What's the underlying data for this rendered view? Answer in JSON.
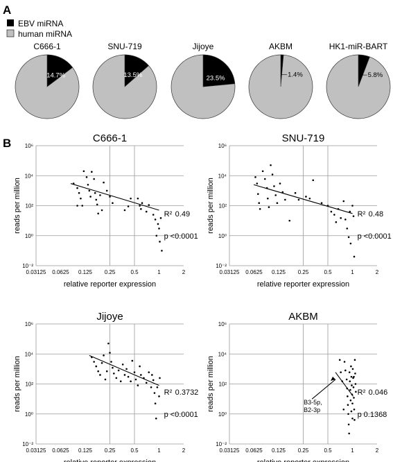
{
  "panel_a": {
    "label": "A",
    "legend": [
      {
        "name": "EBV miRNA",
        "color": "#000000"
      },
      {
        "name": "human miRNA",
        "color": "#c0c0c0"
      }
    ]
  },
  "panel_b": {
    "label": "B"
  },
  "colors": {
    "ebv": "#000000",
    "human": "#c0c0c0",
    "grid": "#999999",
    "points": "#000000"
  },
  "chart_data": [
    {
      "type": "pie",
      "title": "C666-1",
      "slices": [
        {
          "name": "EBV miRNA",
          "value": 14.7,
          "label": "14.7%"
        },
        {
          "name": "human miRNA",
          "value": 85.3
        }
      ]
    },
    {
      "type": "pie",
      "title": "SNU-719",
      "slices": [
        {
          "name": "EBV miRNA",
          "value": 13.5,
          "label": "13.5%"
        },
        {
          "name": "human miRNA",
          "value": 86.5
        }
      ]
    },
    {
      "type": "pie",
      "title": "Jijoye",
      "slices": [
        {
          "name": "EBV miRNA",
          "value": 23.5,
          "label": "23.5%"
        },
        {
          "name": "human miRNA",
          "value": 76.5
        }
      ]
    },
    {
      "type": "pie",
      "title": "AKBM",
      "slices": [
        {
          "name": "EBV miRNA",
          "value": 1.4,
          "label": "1.4%"
        },
        {
          "name": "human miRNA",
          "value": 98.6
        }
      ]
    },
    {
      "type": "pie",
      "title": "HK1-miR-BART",
      "slices": [
        {
          "name": "EBV miRNA",
          "value": 5.8,
          "label": "5.8%"
        },
        {
          "name": "human miRNA",
          "value": 94.2
        }
      ]
    },
    {
      "type": "scatter",
      "title": "C666-1",
      "xlabel": "relative reporter expression",
      "ylabel": "reads per million",
      "xscale": "log2",
      "yscale": "log10",
      "xlim": [
        0.03125,
        2
      ],
      "ylim": [
        0.01,
        1000000
      ],
      "xticks": [
        "0.03125",
        "0.0625",
        "0.125",
        "0.25",
        "0.5",
        "1",
        "2"
      ],
      "yticks": [
        "10-2",
        "100",
        "102",
        "104",
        "106"
      ],
      "r2_label": "R²",
      "r2_value": "0.49",
      "p_label": "p",
      "p_value": "<0.0001",
      "fit": [
        [
          0.083,
          3000
        ],
        [
          1.0,
          50
        ]
      ],
      "points": [
        [
          0.09,
          3000
        ],
        [
          0.1,
          1500
        ],
        [
          0.105,
          700
        ],
        [
          0.11,
          300
        ],
        [
          0.115,
          100
        ],
        [
          0.1,
          100
        ],
        [
          0.12,
          20000
        ],
        [
          0.13,
          8000
        ],
        [
          0.135,
          2500
        ],
        [
          0.14,
          1000
        ],
        [
          0.145,
          400
        ],
        [
          0.15,
          18000
        ],
        [
          0.16,
          6000
        ],
        [
          0.165,
          700
        ],
        [
          0.17,
          250
        ],
        [
          0.175,
          120
        ],
        [
          0.18,
          30
        ],
        [
          0.19,
          500
        ],
        [
          0.2,
          50
        ],
        [
          0.21,
          3500
        ],
        [
          0.23,
          1000
        ],
        [
          0.25,
          400
        ],
        [
          0.27,
          150
        ],
        [
          0.38,
          50
        ],
        [
          0.42,
          90
        ],
        [
          0.45,
          300
        ],
        [
          0.55,
          300
        ],
        [
          0.58,
          100
        ],
        [
          0.6,
          60
        ],
        [
          0.62,
          150
        ],
        [
          0.7,
          40
        ],
        [
          0.75,
          110
        ],
        [
          0.85,
          25
        ],
        [
          0.9,
          12
        ],
        [
          0.93,
          1
        ],
        [
          0.97,
          6
        ],
        [
          1.0,
          3
        ],
        [
          1.02,
          0.4
        ],
        [
          1.05,
          15
        ],
        [
          1.08,
          0.1
        ]
      ]
    },
    {
      "type": "scatter",
      "title": "SNU-719",
      "xlabel": "relative reporter expression",
      "ylabel": "reads per million",
      "xscale": "log2",
      "yscale": "log10",
      "xlim": [
        0.03125,
        2
      ],
      "ylim": [
        0.01,
        1000000
      ],
      "xticks": [
        "0.03125",
        "0.0625",
        "0.125",
        "0.25",
        "0.5",
        "1",
        "2"
      ],
      "yticks": [
        "10-2",
        "100",
        "102",
        "104",
        "106"
      ],
      "r2_label": "R²",
      "r2_value": "0.48",
      "p_label": "p",
      "p_value": "<0.0001",
      "fit": [
        [
          0.062,
          2500
        ],
        [
          1.0,
          30
        ]
      ],
      "points": [
        [
          0.065,
          8000
        ],
        [
          0.068,
          3000
        ],
        [
          0.07,
          600
        ],
        [
          0.072,
          150
        ],
        [
          0.074,
          60
        ],
        [
          0.08,
          20000
        ],
        [
          0.085,
          6000
        ],
        [
          0.09,
          1500
        ],
        [
          0.092,
          300
        ],
        [
          0.095,
          80
        ],
        [
          0.1,
          50000
        ],
        [
          0.105,
          12000
        ],
        [
          0.11,
          2000
        ],
        [
          0.115,
          500
        ],
        [
          0.12,
          150
        ],
        [
          0.13,
          3000
        ],
        [
          0.14,
          800
        ],
        [
          0.15,
          250
        ],
        [
          0.17,
          10
        ],
        [
          0.2,
          700
        ],
        [
          0.22,
          250
        ],
        [
          0.27,
          400
        ],
        [
          0.3,
          300
        ],
        [
          0.33,
          5000
        ],
        [
          0.42,
          150
        ],
        [
          0.5,
          100
        ],
        [
          0.55,
          40
        ],
        [
          0.6,
          25
        ],
        [
          0.63,
          8
        ],
        [
          0.67,
          60
        ],
        [
          0.72,
          15
        ],
        [
          0.78,
          200
        ],
        [
          0.82,
          12
        ],
        [
          0.86,
          3
        ],
        [
          0.9,
          0.8
        ],
        [
          0.93,
          40
        ],
        [
          0.95,
          0.3
        ],
        [
          1.0,
          100
        ],
        [
          1.03,
          20
        ],
        [
          1.05,
          0.04
        ]
      ]
    },
    {
      "type": "scatter",
      "title": "Jijoye",
      "xlabel": "relative reporter expression",
      "ylabel": "reads per million",
      "xscale": "log2",
      "yscale": "log10",
      "xlim": [
        0.03125,
        2
      ],
      "ylim": [
        0.01,
        1000000
      ],
      "xticks": [
        "0.03125",
        "0.0625",
        "0.125",
        "0.25",
        "0.5",
        "1",
        "2"
      ],
      "yticks": [
        "10-2",
        "100",
        "102",
        "104",
        "106"
      ],
      "r2_label": "R²",
      "r2_value": "0.3732",
      "p_label": "p",
      "p_value": "<0.0001",
      "fit": [
        [
          0.14,
          8000
        ],
        [
          1.0,
          80
        ]
      ],
      "points": [
        [
          0.15,
          6000
        ],
        [
          0.16,
          3000
        ],
        [
          0.17,
          1500
        ],
        [
          0.18,
          700
        ],
        [
          0.19,
          400
        ],
        [
          0.2,
          2500
        ],
        [
          0.21,
          8000
        ],
        [
          0.22,
          200
        ],
        [
          0.23,
          700
        ],
        [
          0.24,
          50000
        ],
        [
          0.25,
          12000
        ],
        [
          0.26,
          3000
        ],
        [
          0.27,
          1200
        ],
        [
          0.28,
          500
        ],
        [
          0.3,
          250
        ],
        [
          0.32,
          800
        ],
        [
          0.34,
          150
        ],
        [
          0.36,
          2000
        ],
        [
          0.38,
          400
        ],
        [
          0.4,
          1000
        ],
        [
          0.42,
          300
        ],
        [
          0.45,
          150
        ],
        [
          0.47,
          3500
        ],
        [
          0.5,
          600
        ],
        [
          0.52,
          200
        ],
        [
          0.55,
          80
        ],
        [
          0.58,
          1500
        ],
        [
          0.6,
          400
        ],
        [
          0.65,
          250
        ],
        [
          0.7,
          120
        ],
        [
          0.75,
          600
        ],
        [
          0.8,
          60
        ],
        [
          0.85,
          180
        ],
        [
          0.88,
          25
        ],
        [
          0.9,
          5
        ],
        [
          0.95,
          60
        ],
        [
          1.0,
          15
        ],
        [
          0.92,
          0.5
        ],
        [
          1.02,
          250
        ],
        [
          0.82,
          400
        ]
      ]
    },
    {
      "type": "scatter",
      "title": "AKBM",
      "xlabel": "relative reporter expression",
      "ylabel": "reads per million",
      "xscale": "log2",
      "yscale": "log10",
      "xlim": [
        0.03125,
        2
      ],
      "ylim": [
        0.01,
        1000000
      ],
      "xticks": [
        "0.03125",
        "0.0625",
        "0.125",
        "0.25",
        "0.5",
        "1",
        "2"
      ],
      "yticks": [
        "10-2",
        "100",
        "102",
        "104",
        "106"
      ],
      "r2_label": "R²",
      "r2_value": "0.046",
      "p_label": "p",
      "p_value": "0.1368",
      "annotation": [
        "B3-5p,",
        "B2-3p"
      ],
      "fit": [
        [
          0.62,
          600
        ],
        [
          1.02,
          15
        ]
      ],
      "points": [
        [
          0.8,
          3000
        ],
        [
          0.82,
          800
        ],
        [
          0.85,
          200
        ],
        [
          0.86,
          50
        ],
        [
          0.87,
          15
        ],
        [
          0.88,
          4
        ],
        [
          0.89,
          1
        ],
        [
          0.9,
          0.2
        ],
        [
          0.91,
          0.05
        ],
        [
          0.92,
          600
        ],
        [
          0.93,
          150
        ],
        [
          0.94,
          40
        ],
        [
          0.95,
          8
        ],
        [
          0.96,
          1500
        ],
        [
          0.97,
          300
        ],
        [
          0.98,
          80
        ],
        [
          0.99,
          20
        ],
        [
          1.0,
          5
        ],
        [
          1.0,
          0.5
        ],
        [
          1.01,
          1000
        ],
        [
          1.02,
          250
        ],
        [
          1.03,
          60
        ],
        [
          1.04,
          12
        ],
        [
          1.05,
          2
        ],
        [
          1.06,
          0.4
        ],
        [
          1.07,
          4000
        ],
        [
          1.08,
          500
        ],
        [
          1.09,
          100
        ],
        [
          1.1,
          30
        ],
        [
          0.78,
          2
        ],
        [
          0.75,
          150
        ],
        [
          0.72,
          600
        ],
        [
          0.7,
          4000
        ],
        [
          0.97,
          1.5
        ],
        [
          1.04,
          300
        ]
      ]
    }
  ]
}
